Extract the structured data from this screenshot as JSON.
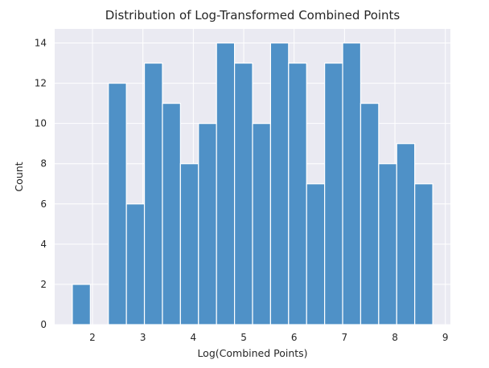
{
  "chart_data": {
    "type": "bar",
    "title": "Distribution of Log-Transformed Combined Points",
    "xlabel": "Log(Combined Points)",
    "ylabel": "Count",
    "xlim": [
      1.25,
      9.1
    ],
    "ylim": [
      0,
      14.7
    ],
    "xticks": [
      2,
      3,
      4,
      5,
      6,
      7,
      8,
      9
    ],
    "yticks": [
      0,
      2,
      4,
      6,
      8,
      10,
      12,
      14
    ],
    "grid": true,
    "bin_start": 1.6,
    "bin_width": 0.3575,
    "values": [
      2,
      0,
      12,
      6,
      13,
      11,
      8,
      10,
      14,
      13,
      10,
      14,
      13,
      7,
      13,
      14,
      11,
      8,
      9,
      7
    ],
    "colors": {
      "bar": "#4f91c7",
      "background": "#eaeaf2",
      "grid": "#ffffff",
      "text": "#262626"
    }
  }
}
